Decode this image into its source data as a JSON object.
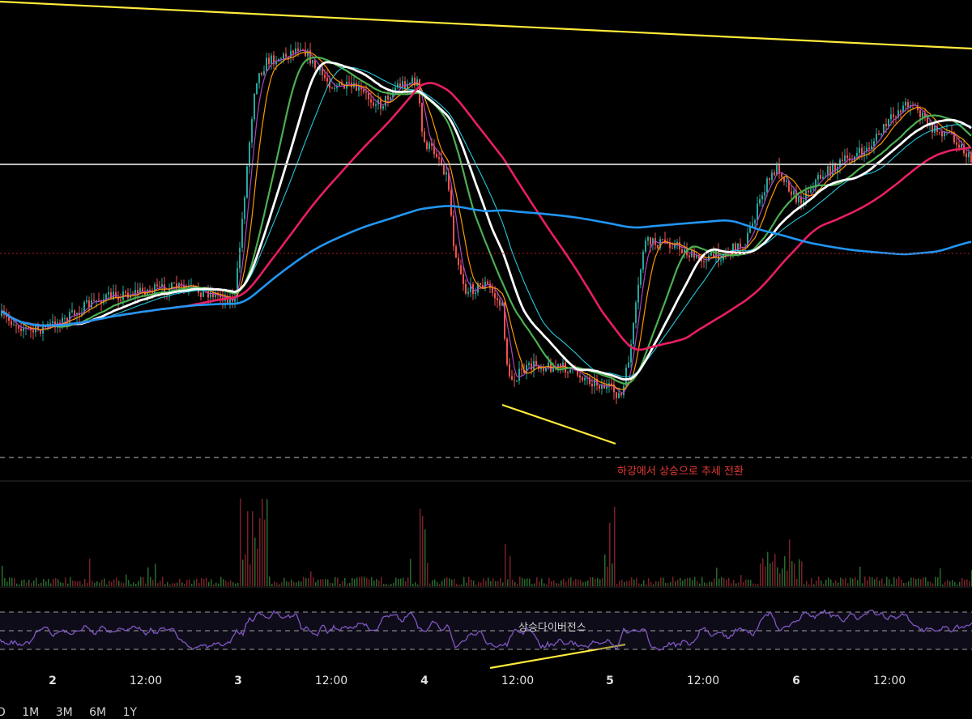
{
  "chart_data": {
    "type": "candlestick",
    "x_ticks": [
      "2",
      "12:00",
      "3",
      "12:00",
      "4",
      "12:00",
      "5",
      "12:00",
      "6",
      "12:00"
    ],
    "annotations": {
      "trend_reversal": "하강에서 상승으로 추세 전환",
      "divergence": "상승다이버전스"
    },
    "timeframe_buttons": [
      "D",
      "1M",
      "3M",
      "6M",
      "1Y"
    ],
    "colors": {
      "up": "#26a69a",
      "down": "#ef5350",
      "ma_white": "#ffffff",
      "ma_red": "#e91e63",
      "ma_blue": "#2196f3",
      "ma_green": "#4caf50",
      "ma_orange": "#ff9800",
      "ma_cyan": "#26c6da",
      "ma_purple": "#ab47bc",
      "trendline": "#ffeb3b",
      "rsi": "#7e57c2",
      "horizontal_line": "#bdbdbd"
    }
  }
}
